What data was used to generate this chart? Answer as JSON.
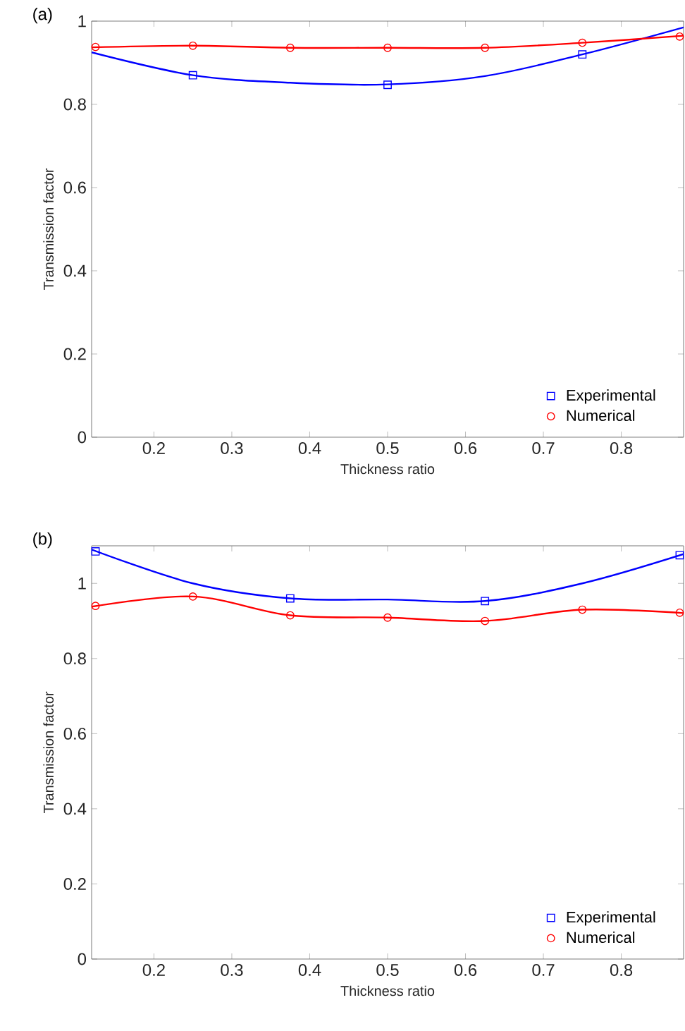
{
  "chart_data": [
    {
      "type": "scatter",
      "title": "(a)",
      "xlabel": "Thickness ratio",
      "ylabel": "Transmission factor",
      "xlim": [
        0.12,
        0.88
      ],
      "ylim": [
        0,
        1
      ],
      "xticks": [
        0.2,
        0.3,
        0.4,
        0.5,
        0.6,
        0.7,
        0.8
      ],
      "yticks": [
        0,
        0.2,
        0.4,
        0.6,
        0.8,
        1
      ],
      "grid": false,
      "legend": "bottom right",
      "series": [
        {
          "name": "Experimental",
          "marker": "square",
          "color": "#0000ff",
          "x": [
            0.25,
            0.5,
            0.75
          ],
          "values": [
            0.87,
            0.847,
            0.92
          ]
        },
        {
          "name": "Numerical",
          "marker": "circle",
          "color": "#ff0000",
          "x": [
            0.125,
            0.25,
            0.375,
            0.5,
            0.625,
            0.75,
            0.875
          ],
          "values": [
            0.938,
            0.941,
            0.936,
            0.936,
            0.936,
            0.948,
            0.963
          ]
        },
        {
          "type": "line",
          "line_style": "solid",
          "color": "#0000ff",
          "x": [
            0.12,
            0.25,
            0.375,
            0.5,
            0.625,
            0.75,
            0.88
          ],
          "values": [
            0.925,
            0.87,
            0.852,
            0.848,
            0.868,
            0.92,
            0.985
          ]
        },
        {
          "type": "line",
          "line_style": "solid",
          "color": "#ff0000",
          "x": [
            0.12,
            0.25,
            0.375,
            0.5,
            0.625,
            0.75,
            0.88
          ],
          "values": [
            0.937,
            0.941,
            0.936,
            0.936,
            0.936,
            0.948,
            0.965
          ]
        }
      ]
    },
    {
      "type": "scatter",
      "title": "(b)",
      "xlabel": "Thickness ratio",
      "ylabel": "Transmission factor",
      "xlim": [
        0.12,
        0.88
      ],
      "ylim": [
        0,
        1.1
      ],
      "xticks": [
        0.2,
        0.3,
        0.4,
        0.5,
        0.6,
        0.7,
        0.8
      ],
      "yticks": [
        0,
        0.2,
        0.4,
        0.6,
        0.8,
        1
      ],
      "grid": false,
      "legend": "bottom right",
      "series": [
        {
          "name": "Experimental",
          "marker": "square",
          "color": "#0000ff",
          "x": [
            0.125,
            0.375,
            0.625,
            0.875
          ],
          "values": [
            1.085,
            0.96,
            0.953,
            1.075
          ]
        },
        {
          "name": "Numerical",
          "marker": "circle",
          "color": "#ff0000",
          "x": [
            0.125,
            0.25,
            0.375,
            0.5,
            0.625,
            0.75,
            0.875
          ],
          "values": [
            0.94,
            0.965,
            0.915,
            0.909,
            0.9,
            0.93,
            0.922
          ]
        },
        {
          "type": "line",
          "line_style": "solid",
          "color": "#0000ff",
          "x": [
            0.12,
            0.25,
            0.375,
            0.5,
            0.625,
            0.75,
            0.88
          ],
          "values": [
            1.09,
            1.0,
            0.96,
            0.957,
            0.953,
            1.0,
            1.078
          ]
        },
        {
          "type": "line",
          "line_style": "solid",
          "color": "#ff0000",
          "x": [
            0.12,
            0.25,
            0.375,
            0.5,
            0.625,
            0.75,
            0.88
          ],
          "values": [
            0.938,
            0.965,
            0.915,
            0.909,
            0.9,
            0.93,
            0.921
          ]
        }
      ]
    }
  ]
}
